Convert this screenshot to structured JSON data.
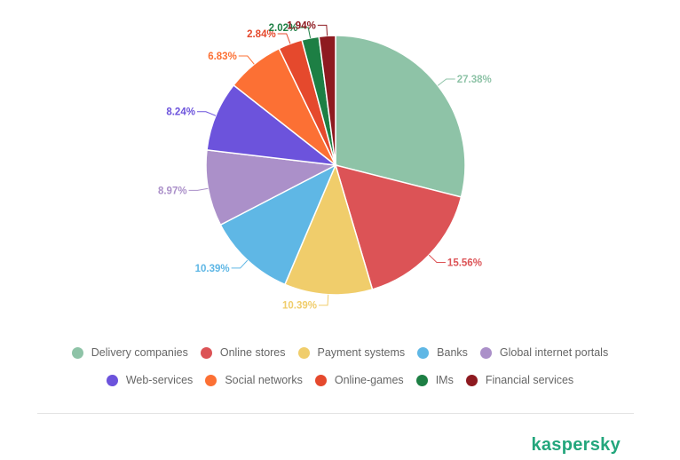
{
  "chart_data": {
    "type": "pie",
    "title": "",
    "slices": [
      {
        "label": "Delivery companies",
        "value": 27.38,
        "display": "27.38%",
        "color": "#8ec3a7"
      },
      {
        "label": "Online stores",
        "value": 15.56,
        "display": "15.56%",
        "color": "#dc5356"
      },
      {
        "label": "Payment systems",
        "value": 10.39,
        "display": "10.39%",
        "color": "#f0cd6b"
      },
      {
        "label": "Banks",
        "value": 10.39,
        "display": "10.39%",
        "color": "#5fb7e5"
      },
      {
        "label": "Global internet portals",
        "value": 8.97,
        "display": "8.97%",
        "color": "#ab90c9"
      },
      {
        "label": "Web-services",
        "value": 8.24,
        "display": "8.24%",
        "color": "#6c53dc"
      },
      {
        "label": "Social networks",
        "value": 6.83,
        "display": "6.83%",
        "color": "#fc7034"
      },
      {
        "label": "Online-games",
        "value": 2.84,
        "display": "2.84%",
        "color": "#e5492d"
      },
      {
        "label": "IMs",
        "value": 2.02,
        "display": "2.02%",
        "color": "#1d7f44"
      },
      {
        "label": "Financial services",
        "value": 1.94,
        "display": "1.94%",
        "color": "#8e1a20"
      }
    ],
    "legend_position": "bottom"
  },
  "legend": {
    "row1": [
      {
        "label": "Delivery companies",
        "color": "#8ec3a7"
      },
      {
        "label": "Online stores",
        "color": "#dc5356"
      },
      {
        "label": "Payment systems",
        "color": "#f0cd6b"
      },
      {
        "label": "Banks",
        "color": "#5fb7e5"
      },
      {
        "label": "Global internet portals",
        "color": "#ab90c9"
      }
    ],
    "row2": [
      {
        "label": "Web-services",
        "color": "#6c53dc"
      },
      {
        "label": "Social networks",
        "color": "#fc7034"
      },
      {
        "label": "Online-games",
        "color": "#e5492d"
      },
      {
        "label": "IMs",
        "color": "#1d7f44"
      },
      {
        "label": "Financial services",
        "color": "#8e1a20"
      }
    ]
  },
  "brand": {
    "name": "kaspersky",
    "color": "#23a67c"
  }
}
